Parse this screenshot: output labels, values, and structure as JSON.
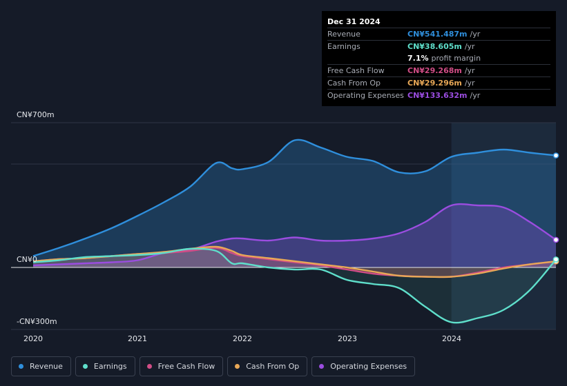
{
  "chart_data": {
    "type": "area",
    "currency_unit": "CN¥ millions",
    "x_ticks": [
      2020,
      2021,
      2022,
      2023,
      2024
    ],
    "y_ticks": [
      {
        "value": 700,
        "label": "CN¥700m"
      },
      {
        "value": 0,
        "label": "CN¥0"
      },
      {
        "value": -300,
        "label": "-CN¥300m"
      }
    ],
    "ylim": [
      -300,
      700
    ],
    "xlim": [
      2020,
      2025.0
    ],
    "forecast_start": 2024.0,
    "series": [
      {
        "name": "Revenue",
        "color": "#2f8fdc",
        "x": [
          2020.0,
          2020.25,
          2020.5,
          2020.75,
          2021.0,
          2021.25,
          2021.5,
          2021.75,
          2021.9,
          2022.0,
          2022.25,
          2022.5,
          2022.75,
          2023.0,
          2023.25,
          2023.5,
          2023.75,
          2024.0,
          2024.25,
          2024.5,
          2024.75,
          2025.0
        ],
        "values": [
          55,
          95,
          140,
          190,
          250,
          315,
          390,
          505,
          480,
          475,
          510,
          615,
          580,
          535,
          515,
          460,
          465,
          535,
          555,
          570,
          555,
          541.5
        ]
      },
      {
        "name": "Earnings",
        "color": "#5fdfcb",
        "x": [
          2020.0,
          2020.25,
          2020.5,
          2020.75,
          2021.0,
          2021.25,
          2021.5,
          2021.75,
          2021.9,
          2022.0,
          2022.25,
          2022.5,
          2022.75,
          2023.0,
          2023.25,
          2023.5,
          2023.75,
          2024.0,
          2024.25,
          2024.5,
          2024.75,
          2025.0
        ],
        "values": [
          25,
          35,
          50,
          55,
          60,
          70,
          90,
          80,
          20,
          20,
          0,
          -10,
          -10,
          -60,
          -80,
          -100,
          -190,
          -265,
          -245,
          -205,
          -110,
          38.6
        ]
      },
      {
        "name": "Free Cash Flow",
        "color": "#d14d86",
        "x": [
          2020.0,
          2020.25,
          2020.5,
          2020.75,
          2021.0,
          2021.25,
          2021.5,
          2021.75,
          2021.9,
          2022.0,
          2022.25,
          2022.5,
          2022.75,
          2023.0,
          2023.25,
          2023.5,
          2023.75,
          2024.0,
          2024.25,
          2024.5,
          2024.75,
          2025.0
        ],
        "values": [
          30,
          40,
          45,
          55,
          65,
          70,
          80,
          95,
          70,
          55,
          40,
          25,
          10,
          -10,
          -30,
          -40,
          -45,
          -45,
          -25,
          0,
          15,
          29.3
        ]
      },
      {
        "name": "Cash From Op",
        "color": "#e8a857",
        "x": [
          2020.0,
          2020.25,
          2020.5,
          2020.75,
          2021.0,
          2021.25,
          2021.5,
          2021.75,
          2021.9,
          2022.0,
          2022.25,
          2022.5,
          2022.75,
          2023.0,
          2023.25,
          2023.5,
          2023.75,
          2024.0,
          2024.25,
          2024.5,
          2024.75,
          2025.0
        ],
        "values": [
          30,
          40,
          45,
          55,
          65,
          75,
          90,
          100,
          80,
          60,
          45,
          30,
          15,
          0,
          -20,
          -40,
          -45,
          -45,
          -30,
          -5,
          15,
          29.3
        ]
      },
      {
        "name": "Operating Expenses",
        "color": "#9b4de0",
        "x": [
          2020.0,
          2020.25,
          2020.5,
          2020.75,
          2021.0,
          2021.25,
          2021.5,
          2021.75,
          2021.9,
          2022.0,
          2022.25,
          2022.5,
          2022.75,
          2023.0,
          2023.25,
          2023.5,
          2023.75,
          2024.0,
          2024.25,
          2024.5,
          2024.75,
          2025.0
        ],
        "values": [
          10,
          15,
          20,
          25,
          35,
          70,
          85,
          125,
          140,
          140,
          130,
          145,
          130,
          130,
          140,
          165,
          220,
          300,
          300,
          290,
          220,
          133.6
        ]
      }
    ],
    "legend": [
      "Revenue",
      "Earnings",
      "Free Cash Flow",
      "Cash From Op",
      "Operating Expenses"
    ]
  },
  "tooltip": {
    "date": "Dec 31 2024",
    "rows": [
      {
        "label": "Revenue",
        "value": "CN¥541.487m",
        "unit": "/yr",
        "color": "#2f8fdc"
      },
      {
        "label": "Earnings",
        "value": "CN¥38.605m",
        "unit": "/yr",
        "color": "#5fdfcb"
      },
      {
        "label": "",
        "value": "7.1%",
        "unit": "profit margin",
        "color": "#ffffff"
      },
      {
        "label": "Free Cash Flow",
        "value": "CN¥29.268m",
        "unit": "/yr",
        "color": "#d14d86"
      },
      {
        "label": "Cash From Op",
        "value": "CN¥29.296m",
        "unit": "/yr",
        "color": "#e8a857"
      },
      {
        "label": "Operating Expenses",
        "value": "CN¥133.632m",
        "unit": "/yr",
        "color": "#9b4de0"
      }
    ]
  }
}
